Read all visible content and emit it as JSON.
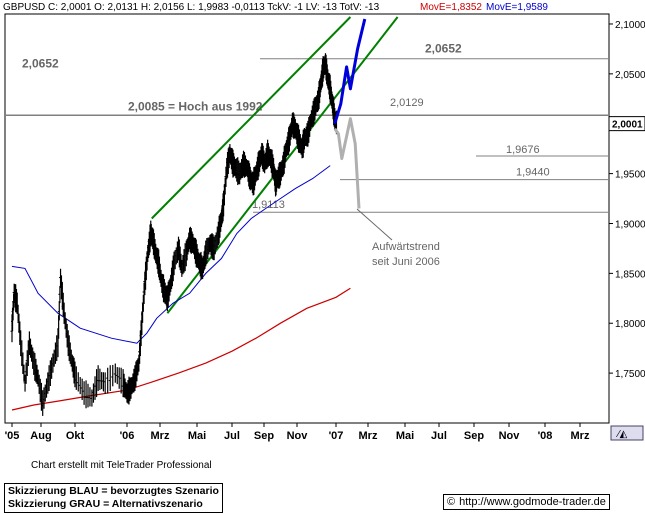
{
  "header": {
    "symbol": "GBPUSD",
    "quote": "C: 2,0001  O: 2,0131  H: 2,0156  L: 1,9983  -0,0113  TckV: -1  LV: -13  TotV: -13",
    "ma_red": "MovE=1,8352",
    "ma_blue": "MovE=1,9589"
  },
  "colors": {
    "price": "#000000",
    "channel": "#008000",
    "ma_fast": "#0000cc",
    "ma_slow": "#cc0000",
    "scenario_blue": "#0000dd",
    "scenario_grey": "#b0b0b0",
    "level_line": "#808080"
  },
  "chart_data": {
    "type": "line",
    "title": "GBPUSD",
    "x_tick_labels": [
      "'05",
      "Aug",
      "Okt",
      "'06",
      "Mrz",
      "Mai",
      "Jul",
      "Sep",
      "Nov",
      "'07",
      "Mrz",
      "Mai",
      "Jul",
      "Sep",
      "Nov",
      "'08",
      "Mrz"
    ],
    "y_tick_labels": [
      "1,7500",
      "1,8000",
      "1,8500",
      "1,9000",
      "1,9500",
      "2,0000",
      "2,0500",
      "2,1000"
    ],
    "ylim": [
      1.7,
      2.11
    ],
    "last_price_label": "2,0001",
    "price_path": [
      [
        0,
        1.795
      ],
      [
        0.05,
        1.83
      ],
      [
        0.12,
        1.82
      ],
      [
        0.2,
        1.78
      ],
      [
        0.3,
        1.74
      ],
      [
        0.4,
        1.78
      ],
      [
        0.5,
        1.76
      ],
      [
        0.6,
        1.745
      ],
      [
        0.7,
        1.72
      ],
      [
        0.8,
        1.74
      ],
      [
        0.9,
        1.76
      ],
      [
        1.0,
        1.78
      ],
      [
        1.05,
        1.845
      ],
      [
        1.12,
        1.81
      ],
      [
        1.2,
        1.78
      ],
      [
        1.28,
        1.76
      ],
      [
        1.35,
        1.745
      ],
      [
        1.45,
        1.73
      ],
      [
        1.55,
        1.725
      ],
      [
        1.63,
        1.745
      ],
      [
        1.72,
        1.74
      ],
      [
        1.85,
        1.75
      ],
      [
        1.95,
        1.74
      ],
      [
        2.0,
        1.73
      ],
      [
        2.08,
        1.735
      ],
      [
        2.16,
        1.745
      ],
      [
        2.24,
        1.76
      ],
      [
        2.3,
        1.8
      ],
      [
        2.36,
        1.84
      ],
      [
        2.42,
        1.87
      ],
      [
        2.48,
        1.89
      ],
      [
        2.52,
        1.885
      ],
      [
        2.58,
        1.87
      ],
      [
        2.64,
        1.86
      ],
      [
        2.7,
        1.84
      ],
      [
        2.76,
        1.83
      ],
      [
        2.8,
        1.825
      ],
      [
        2.86,
        1.84
      ],
      [
        2.92,
        1.86
      ],
      [
        3.0,
        1.875
      ],
      [
        3.06,
        1.855
      ],
      [
        3.14,
        1.87
      ],
      [
        3.2,
        1.885
      ],
      [
        3.26,
        1.88
      ],
      [
        3.32,
        1.87
      ],
      [
        3.38,
        1.86
      ],
      [
        3.44,
        1.855
      ],
      [
        3.5,
        1.87
      ],
      [
        3.58,
        1.88
      ],
      [
        3.66,
        1.875
      ],
      [
        3.74,
        1.89
      ],
      [
        3.8,
        1.905
      ],
      [
        3.84,
        1.92
      ],
      [
        3.9,
        1.955
      ],
      [
        3.96,
        1.97
      ],
      [
        4.02,
        1.96
      ],
      [
        4.08,
        1.955
      ],
      [
        4.16,
        1.95
      ],
      [
        4.24,
        1.96
      ],
      [
        4.32,
        1.955
      ],
      [
        4.38,
        1.945
      ],
      [
        4.44,
        1.94
      ],
      [
        4.5,
        1.95
      ],
      [
        4.56,
        1.96
      ],
      [
        4.62,
        1.97
      ],
      [
        4.68,
        1.96
      ],
      [
        4.74,
        1.97
      ],
      [
        4.8,
        1.965
      ],
      [
        4.86,
        1.955
      ],
      [
        4.9,
        1.94
      ],
      [
        4.94,
        1.945
      ],
      [
        5.0,
        1.95
      ],
      [
        5.06,
        1.96
      ],
      [
        5.12,
        1.975
      ],
      [
        5.18,
        1.985
      ],
      [
        5.24,
        2.0
      ],
      [
        5.3,
        1.995
      ],
      [
        5.36,
        1.985
      ],
      [
        5.42,
        1.975
      ],
      [
        5.46,
        1.985
      ],
      [
        5.52,
        1.99
      ],
      [
        5.58,
        2.005
      ],
      [
        5.64,
        2.015
      ],
      [
        5.7,
        2.025
      ],
      [
        5.74,
        2.04
      ],
      [
        5.78,
        2.055
      ],
      [
        5.82,
        2.06
      ],
      [
        5.86,
        2.045
      ],
      [
        5.9,
        2.035
      ],
      [
        5.94,
        2.02
      ],
      [
        5.98,
        2.005
      ],
      [
        6.02,
        2.0001
      ]
    ],
    "ma_slow_path": [
      [
        0,
        1.713
      ],
      [
        0.5,
        1.718
      ],
      [
        1.0,
        1.722
      ],
      [
        1.5,
        1.727
      ],
      [
        2.0,
        1.733
      ],
      [
        2.5,
        1.741
      ],
      [
        3.0,
        1.75
      ],
      [
        3.5,
        1.76
      ],
      [
        4.0,
        1.772
      ],
      [
        4.5,
        1.785
      ],
      [
        5.0,
        1.8
      ],
      [
        5.5,
        1.815
      ],
      [
        6.0,
        1.826
      ],
      [
        6.3,
        1.835
      ]
    ],
    "ma_fast_path": [
      [
        0,
        1.857
      ],
      [
        0.3,
        1.855
      ],
      [
        0.6,
        1.83
      ],
      [
        1.0,
        1.81
      ],
      [
        1.4,
        1.795
      ],
      [
        1.8,
        1.785
      ],
      [
        2.2,
        1.78
      ],
      [
        2.4,
        1.79
      ],
      [
        2.6,
        1.805
      ],
      [
        2.9,
        1.82
      ],
      [
        3.2,
        1.83
      ],
      [
        3.5,
        1.85
      ],
      [
        3.8,
        1.865
      ],
      [
        4.1,
        1.89
      ],
      [
        4.4,
        1.905
      ],
      [
        4.7,
        1.915
      ],
      [
        5.0,
        1.925
      ],
      [
        5.3,
        1.935
      ],
      [
        5.6,
        1.945
      ],
      [
        5.9,
        1.958
      ]
    ],
    "channel_lines": [
      {
        "from": [
          2.5,
          1.905
        ],
        "to": [
          6.3,
          2.107
        ]
      },
      {
        "from": [
          2.8,
          1.81
        ],
        "to": [
          7.2,
          2.107
        ]
      }
    ],
    "level_lines": [
      {
        "y": 2.0652,
        "label": "2,0652",
        "x_start": 3.8
      },
      {
        "y": 2.0085,
        "label": "2,0085 = Hoch aus 1992",
        "x_start": 0
      },
      {
        "y": 1.9676,
        "label": "1,9676",
        "x_start": 5.92
      },
      {
        "y": 1.944,
        "label": "1,9440",
        "x_start": 4.0
      },
      {
        "y": 1.9113,
        "label": "1,9113",
        "x_start": 3.7
      },
      {
        "y": 2.0129,
        "label": "2,0129"
      }
    ],
    "scenario_blue_path": [
      [
        5.98,
        2.0001
      ],
      [
        6.1,
        2.02
      ],
      [
        6.22,
        2.057
      ],
      [
        6.3,
        2.035
      ],
      [
        6.45,
        2.075
      ],
      [
        6.6,
        2.105
      ]
    ],
    "scenario_grey_path": [
      [
        5.98,
        1.995
      ],
      [
        6.05,
        1.99
      ],
      [
        6.12,
        1.965
      ],
      [
        6.3,
        2.005
      ],
      [
        6.4,
        1.98
      ],
      [
        6.48,
        1.915
      ]
    ],
    "annotations": {
      "trend_label_line1": "Aufwärtstrend",
      "trend_label_line2": "seit Juni 2006",
      "label_left_2_0652": "2,0652"
    }
  },
  "footer": {
    "credit": "Chart erstellt mit TeleTrader Professional",
    "legend_blue": "Skizzierung BLAU = bevorzugtes Szenario",
    "legend_grey": "Skizzierung GRAU = Alternativszenario",
    "copyright_symbol": "©",
    "url": "http://www.godmode-trader.de"
  }
}
